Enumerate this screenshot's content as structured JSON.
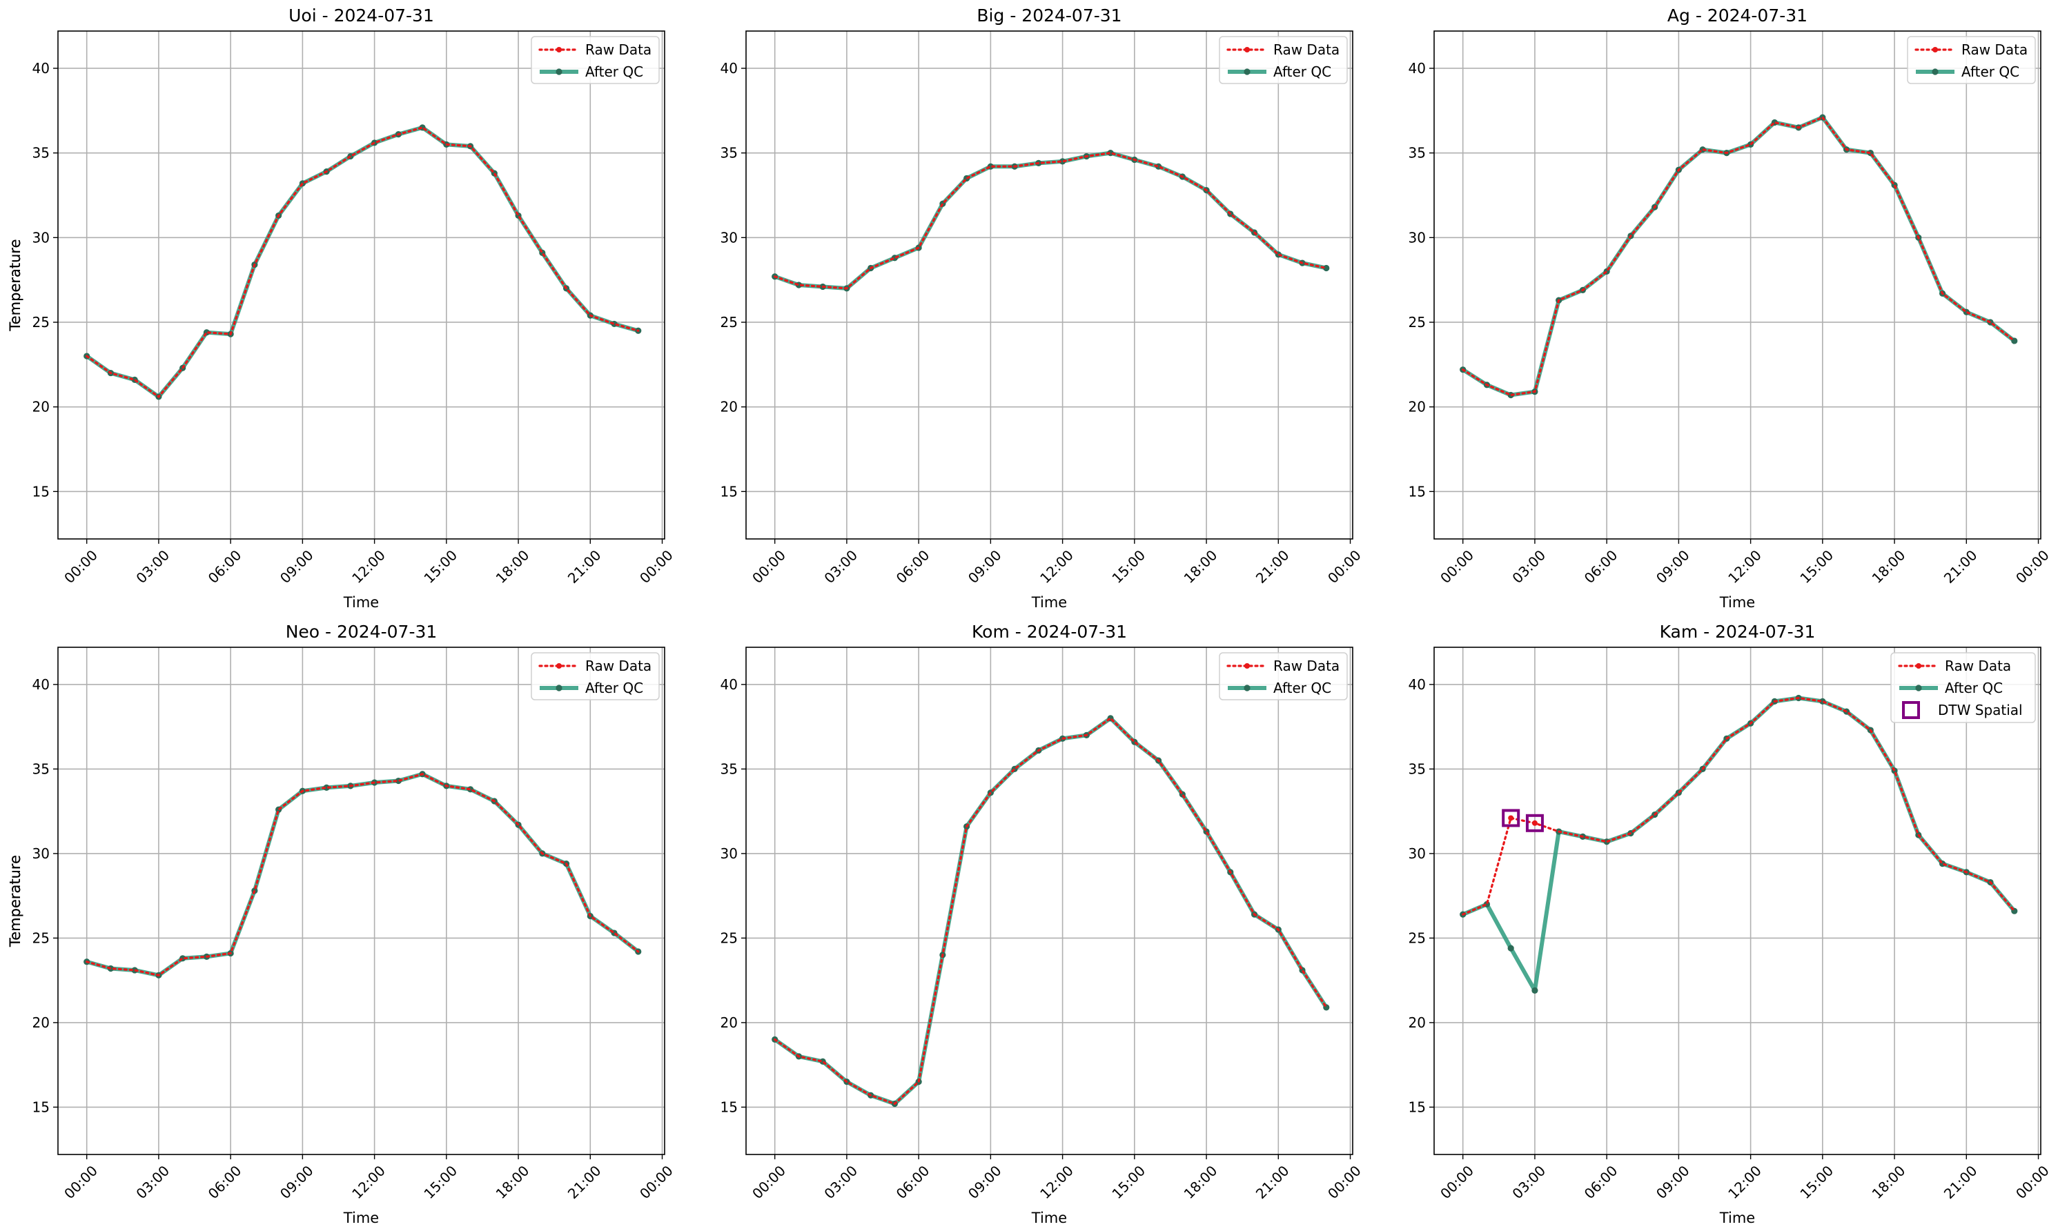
{
  "figure": {
    "colors": {
      "raw": "#e8181a",
      "qc": "#2a9a7d",
      "qc_marker": "#2c6b57",
      "dtw": "#800080",
      "grid": "#b0b0b0"
    }
  },
  "chart_data": [
    {
      "type": "line",
      "title": "Uoi - 2024-07-31",
      "xlabel": "Time",
      "ylabel": "Temperature",
      "xlim": [
        -1.2,
        24.1
      ],
      "ylim": [
        12.2,
        42.2
      ],
      "x_ticks": [
        0,
        3,
        6,
        9,
        12,
        15,
        18,
        21,
        24
      ],
      "x_tick_labels": [
        "00:00",
        "03:00",
        "06:00",
        "09:00",
        "12:00",
        "15:00",
        "18:00",
        "21:00",
        "00:00"
      ],
      "y_ticks": [
        15,
        20,
        25,
        30,
        35,
        40
      ],
      "grid": true,
      "legend_position": "top-right",
      "x": [
        0,
        1,
        2,
        3,
        4,
        5,
        6,
        7,
        8,
        9,
        10,
        11,
        12,
        13,
        14,
        15,
        16,
        17,
        18,
        19,
        20,
        21,
        22,
        23
      ],
      "series": [
        {
          "name": "Raw Data",
          "style": "dotted-red",
          "values": [
            23.0,
            22.0,
            21.6,
            20.6,
            22.3,
            24.4,
            24.3,
            28.4,
            31.3,
            33.2,
            33.9,
            34.8,
            35.6,
            36.1,
            36.5,
            35.5,
            35.4,
            33.8,
            31.3,
            29.1,
            27.0,
            25.4,
            24.9,
            24.5
          ]
        },
        {
          "name": "After QC",
          "style": "solid-teal",
          "values": [
            23.0,
            22.0,
            21.6,
            20.6,
            22.3,
            24.4,
            24.3,
            28.4,
            31.3,
            33.2,
            33.9,
            34.8,
            35.6,
            36.1,
            36.5,
            35.5,
            35.4,
            33.8,
            31.3,
            29.1,
            27.0,
            25.4,
            24.9,
            24.5
          ]
        }
      ],
      "flags": []
    },
    {
      "type": "line",
      "title": "Big - 2024-07-31",
      "xlabel": "Time",
      "ylabel": "Temperature",
      "xlim": [
        -1.2,
        24.1
      ],
      "ylim": [
        12.2,
        42.2
      ],
      "x_ticks": [
        0,
        3,
        6,
        9,
        12,
        15,
        18,
        21,
        24
      ],
      "x_tick_labels": [
        "00:00",
        "03:00",
        "06:00",
        "09:00",
        "12:00",
        "15:00",
        "18:00",
        "21:00",
        "00:00"
      ],
      "y_ticks": [
        15,
        20,
        25,
        30,
        35,
        40
      ],
      "grid": true,
      "legend_position": "top-right",
      "x": [
        0,
        1,
        2,
        3,
        4,
        5,
        6,
        7,
        8,
        9,
        10,
        11,
        12,
        13,
        14,
        15,
        16,
        17,
        18,
        19,
        20,
        21,
        22,
        23
      ],
      "series": [
        {
          "name": "Raw Data",
          "style": "dotted-red",
          "values": [
            27.7,
            27.2,
            27.1,
            27.0,
            28.2,
            28.8,
            29.4,
            32.0,
            33.5,
            34.2,
            34.2,
            34.4,
            34.5,
            34.8,
            35.0,
            34.6,
            34.2,
            33.6,
            32.8,
            31.4,
            30.3,
            29.0,
            28.5,
            28.2
          ]
        },
        {
          "name": "After QC",
          "style": "solid-teal",
          "values": [
            27.7,
            27.2,
            27.1,
            27.0,
            28.2,
            28.8,
            29.4,
            32.0,
            33.5,
            34.2,
            34.2,
            34.4,
            34.5,
            34.8,
            35.0,
            34.6,
            34.2,
            33.6,
            32.8,
            31.4,
            30.3,
            29.0,
            28.5,
            28.2
          ]
        }
      ],
      "flags": []
    },
    {
      "type": "line",
      "title": "Ag - 2024-07-31",
      "xlabel": "Time",
      "ylabel": "Temperature",
      "xlim": [
        -1.2,
        24.1
      ],
      "ylim": [
        12.2,
        42.2
      ],
      "x_ticks": [
        0,
        3,
        6,
        9,
        12,
        15,
        18,
        21,
        24
      ],
      "x_tick_labels": [
        "00:00",
        "03:00",
        "06:00",
        "09:00",
        "12:00",
        "15:00",
        "18:00",
        "21:00",
        "00:00"
      ],
      "y_ticks": [
        15,
        20,
        25,
        30,
        35,
        40
      ],
      "grid": true,
      "legend_position": "top-right",
      "x": [
        0,
        1,
        2,
        3,
        4,
        5,
        6,
        7,
        8,
        9,
        10,
        11,
        12,
        13,
        14,
        15,
        16,
        17,
        18,
        19,
        20,
        21,
        22,
        23
      ],
      "series": [
        {
          "name": "Raw Data",
          "style": "dotted-red",
          "values": [
            22.2,
            21.3,
            20.7,
            20.9,
            26.3,
            26.9,
            28.0,
            30.1,
            31.8,
            34.0,
            35.2,
            35.0,
            35.5,
            36.8,
            36.5,
            37.1,
            35.2,
            35.0,
            33.1,
            30.0,
            26.7,
            25.6,
            25.0,
            23.9
          ]
        },
        {
          "name": "After QC",
          "style": "solid-teal",
          "values": [
            22.2,
            21.3,
            20.7,
            20.9,
            26.3,
            26.9,
            28.0,
            30.1,
            31.8,
            34.0,
            35.2,
            35.0,
            35.5,
            36.8,
            36.5,
            37.1,
            35.2,
            35.0,
            33.1,
            30.0,
            26.7,
            25.6,
            25.0,
            23.9
          ]
        }
      ],
      "flags": []
    },
    {
      "type": "line",
      "title": "Neo - 2024-07-31",
      "xlabel": "Time",
      "ylabel": "Temperature",
      "xlim": [
        -1.2,
        24.1
      ],
      "ylim": [
        12.2,
        42.2
      ],
      "x_ticks": [
        0,
        3,
        6,
        9,
        12,
        15,
        18,
        21,
        24
      ],
      "x_tick_labels": [
        "00:00",
        "03:00",
        "06:00",
        "09:00",
        "12:00",
        "15:00",
        "18:00",
        "21:00",
        "00:00"
      ],
      "y_ticks": [
        15,
        20,
        25,
        30,
        35,
        40
      ],
      "grid": true,
      "legend_position": "top-right",
      "x": [
        0,
        1,
        2,
        3,
        4,
        5,
        6,
        7,
        8,
        9,
        10,
        11,
        12,
        13,
        14,
        15,
        16,
        17,
        18,
        19,
        20,
        21,
        22,
        23
      ],
      "series": [
        {
          "name": "Raw Data",
          "style": "dotted-red",
          "values": [
            23.6,
            23.2,
            23.1,
            22.8,
            23.8,
            23.9,
            24.1,
            27.8,
            32.6,
            33.7,
            33.9,
            34.0,
            34.2,
            34.3,
            34.7,
            34.0,
            33.8,
            33.1,
            31.7,
            30.0,
            29.4,
            26.3,
            25.3,
            24.2
          ]
        },
        {
          "name": "After QC",
          "style": "solid-teal",
          "values": [
            23.6,
            23.2,
            23.1,
            22.8,
            23.8,
            23.9,
            24.1,
            27.8,
            32.6,
            33.7,
            33.9,
            34.0,
            34.2,
            34.3,
            34.7,
            34.0,
            33.8,
            33.1,
            31.7,
            30.0,
            29.4,
            26.3,
            25.3,
            24.2
          ]
        }
      ],
      "flags": []
    },
    {
      "type": "line",
      "title": "Kom - 2024-07-31",
      "xlabel": "Time",
      "ylabel": "Temperature",
      "xlim": [
        -1.2,
        24.1
      ],
      "ylim": [
        12.2,
        42.2
      ],
      "x_ticks": [
        0,
        3,
        6,
        9,
        12,
        15,
        18,
        21,
        24
      ],
      "x_tick_labels": [
        "00:00",
        "03:00",
        "06:00",
        "09:00",
        "12:00",
        "15:00",
        "18:00",
        "21:00",
        "00:00"
      ],
      "y_ticks": [
        15,
        20,
        25,
        30,
        35,
        40
      ],
      "grid": true,
      "legend_position": "top-right",
      "x": [
        0,
        1,
        2,
        3,
        4,
        5,
        6,
        7,
        8,
        9,
        10,
        11,
        12,
        13,
        14,
        15,
        16,
        17,
        18,
        19,
        20,
        21,
        22,
        23
      ],
      "series": [
        {
          "name": "Raw Data",
          "style": "dotted-red",
          "values": [
            19.0,
            18.0,
            17.7,
            16.5,
            15.7,
            15.2,
            16.5,
            24.0,
            31.6,
            33.6,
            35.0,
            36.1,
            36.8,
            37.0,
            38.0,
            36.6,
            35.5,
            33.5,
            31.3,
            28.9,
            26.4,
            25.5,
            23.1,
            20.9
          ]
        },
        {
          "name": "After QC",
          "style": "solid-teal",
          "values": [
            19.0,
            18.0,
            17.7,
            16.5,
            15.7,
            15.2,
            16.5,
            24.0,
            31.6,
            33.6,
            35.0,
            36.1,
            36.8,
            37.0,
            38.0,
            36.6,
            35.5,
            33.5,
            31.3,
            28.9,
            26.4,
            25.5,
            23.1,
            20.9
          ]
        }
      ],
      "flags": []
    },
    {
      "type": "line",
      "title": "Kam - 2024-07-31",
      "xlabel": "Time",
      "ylabel": "Temperature",
      "xlim": [
        -1.2,
        24.1
      ],
      "ylim": [
        12.2,
        42.2
      ],
      "x_ticks": [
        0,
        3,
        6,
        9,
        12,
        15,
        18,
        21,
        24
      ],
      "x_tick_labels": [
        "00:00",
        "03:00",
        "06:00",
        "09:00",
        "12:00",
        "15:00",
        "18:00",
        "21:00",
        "00:00"
      ],
      "y_ticks": [
        15,
        20,
        25,
        30,
        35,
        40
      ],
      "grid": true,
      "legend_position": "top-right",
      "x": [
        0,
        1,
        2,
        3,
        4,
        5,
        6,
        7,
        8,
        9,
        10,
        11,
        12,
        13,
        14,
        15,
        16,
        17,
        18,
        19,
        20,
        21,
        22,
        23
      ],
      "series": [
        {
          "name": "Raw Data",
          "style": "dotted-red",
          "values": [
            26.4,
            27.0,
            32.1,
            31.8,
            31.3,
            31.0,
            30.7,
            31.2,
            32.3,
            33.6,
            35.0,
            36.8,
            37.7,
            39.0,
            39.2,
            39.0,
            38.4,
            37.3,
            34.9,
            31.1,
            29.4,
            28.9,
            28.3,
            26.6
          ]
        },
        {
          "name": "After QC",
          "style": "solid-teal",
          "values": [
            26.4,
            27.0,
            24.4,
            21.9,
            31.3,
            31.0,
            30.7,
            31.2,
            32.3,
            33.6,
            35.0,
            36.8,
            37.7,
            39.0,
            39.2,
            39.0,
            38.4,
            37.3,
            34.9,
            31.1,
            29.4,
            28.9,
            28.3,
            26.6
          ]
        }
      ],
      "flags": [
        {
          "name": "DTW Spatial",
          "style": "hollow-square-purple",
          "x": [
            2,
            3
          ],
          "values": [
            32.1,
            31.8
          ]
        }
      ]
    }
  ]
}
